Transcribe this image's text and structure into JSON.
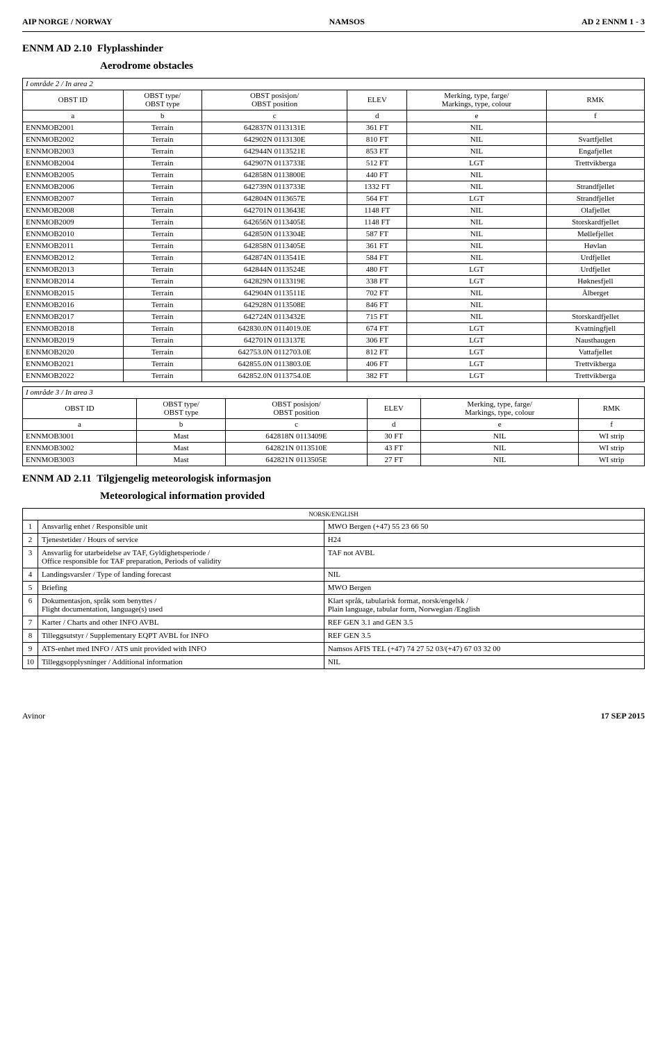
{
  "header": {
    "left": "AIP NORGE / NORWAY",
    "center": "NAMSOS",
    "right": "AD 2 ENNM 1 - 3"
  },
  "section1": {
    "code": "ENNM AD 2.10",
    "title_en": "Flyplasshinder",
    "subtitle": "Aerodrome obstacles"
  },
  "area2": {
    "caption": "I område 2 / In area 2",
    "headers": {
      "c1a": "OBST ID",
      "c2a": "OBST type/",
      "c2b": "OBST type",
      "c3a": "OBST posisjon/",
      "c3b": "OBST position",
      "c4a": "ELEV",
      "c5a": "Merking, type, farge/",
      "c5b": "Markings, type, colour",
      "c6a": "RMK",
      "s1": "a",
      "s2": "b",
      "s3": "c",
      "s4": "d",
      "s5": "e",
      "s6": "f"
    },
    "rows": [
      [
        "ENNMOB2001",
        "Terrain",
        "642837N 0113131E",
        "361 FT",
        "NIL",
        ""
      ],
      [
        "ENNMOB2002",
        "Terrain",
        "642902N 0113130E",
        "810 FT",
        "NIL",
        "Svartfjellet"
      ],
      [
        "ENNMOB2003",
        "Terrain",
        "642944N 0113521E",
        "853 FT",
        "NIL",
        "Engafjellet"
      ],
      [
        "ENNMOB2004",
        "Terrain",
        "642907N 0113733E",
        "512 FT",
        "LGT",
        "Trettvikberga"
      ],
      [
        "ENNMOB2005",
        "Terrain",
        "642858N 0113800E",
        "440 FT",
        "NIL",
        ""
      ],
      [
        "ENNMOB2006",
        "Terrain",
        "642739N 0113733E",
        "1332 FT",
        "NIL",
        "Strandfjellet"
      ],
      [
        "ENNMOB2007",
        "Terrain",
        "642804N 0113657E",
        "564 FT",
        "LGT",
        "Strandfjellet"
      ],
      [
        "ENNMOB2008",
        "Terrain",
        "642701N 0113643E",
        "1148 FT",
        "NIL",
        "Olafjellet"
      ],
      [
        "ENNMOB2009",
        "Terrain",
        "642656N 0113405E",
        "1148 FT",
        "NIL",
        "Storskardfjellet"
      ],
      [
        "ENNMOB2010",
        "Terrain",
        "642850N 0113304E",
        "587 FT",
        "NIL",
        "Møllefjellet"
      ],
      [
        "ENNMOB2011",
        "Terrain",
        "642858N 0113405E",
        "361 FT",
        "NIL",
        "Høvlan"
      ],
      [
        "ENNMOB2012",
        "Terrain",
        "642874N 0113541E",
        "584 FT",
        "NIL",
        "Urdfjellet"
      ],
      [
        "ENNMOB2013",
        "Terrain",
        "642844N 0113524E",
        "480 FT",
        "LGT",
        "Urdfjellet"
      ],
      [
        "ENNMOB2014",
        "Terrain",
        "642829N 0113319E",
        "338 FT",
        "LGT",
        "Høknesfjell"
      ],
      [
        "ENNMOB2015",
        "Terrain",
        "642904N 0113511E",
        "702 FT",
        "NIL",
        "Ålberget"
      ],
      [
        "ENNMOB2016",
        "Terrain",
        "642928N 0113508E",
        "846 FT",
        "NIL",
        ""
      ],
      [
        "ENNMOB2017",
        "Terrain",
        "642724N 0113432E",
        "715 FT",
        "NIL",
        "Storskardfjellet"
      ],
      [
        "ENNMOB2018",
        "Terrain",
        "642830.0N 0114019.0E",
        "674 FT",
        "LGT",
        "Kvatningfjell"
      ],
      [
        "ENNMOB2019",
        "Terrain",
        "642701N 0113137E",
        "306 FT",
        "LGT",
        "Nausthaugen"
      ],
      [
        "ENNMOB2020",
        "Terrain",
        "642753.0N 0112703.0E",
        "812 FT",
        "LGT",
        "Vattafjellet"
      ],
      [
        "ENNMOB2021",
        "Terrain",
        "642855.0N 0113803.0E",
        "406 FT",
        "LGT",
        "Trettvikberga"
      ],
      [
        "ENNMOB2022",
        "Terrain",
        "642852.0N 0113754.0E",
        "382 FT",
        "LGT",
        "Trettvikberga"
      ]
    ]
  },
  "area3": {
    "caption": "I område 3 / In area 3",
    "rows": [
      [
        "ENNMOB3001",
        "Mast",
        "642818N 0113409E",
        "30 FT",
        "NIL",
        "WI strip"
      ],
      [
        "ENNMOB3002",
        "Mast",
        "642821N 0113510E",
        "43 FT",
        "NIL",
        "WI strip"
      ],
      [
        "ENNMOB3003",
        "Mast",
        "642821N 0113505E",
        "27 FT",
        "NIL",
        "WI strip"
      ]
    ]
  },
  "section2": {
    "code": "ENNM AD 2.11",
    "title_no": "Tilgjengelig meteorologisk informasjon",
    "title_en": "Meteorological information provided",
    "caption": "NORSK/ENGLISH",
    "rows": [
      [
        "1",
        "Ansvarlig enhet / Responsible unit",
        "MWO Bergen (+47) 55 23 66 50"
      ],
      [
        "2",
        "Tjenestetider / Hours of service",
        "H24"
      ],
      [
        "3",
        "Ansvarlig for utarbeidelse av TAF, Gyldighetsperiode /\nOffice responsible for TAF preparation, Periods of validity",
        "TAF not AVBL"
      ],
      [
        "4",
        "Landingsvarsler / Type of landing forecast",
        "NIL"
      ],
      [
        "5",
        "Briefing",
        "MWO Bergen"
      ],
      [
        "6",
        "Dokumentasjon, språk som benyttes /\nFlight documentation, language(s) used",
        "Klart språk, tabularisk format, norsk/engelsk /\nPlain language, tabular form, Norwegian /English"
      ],
      [
        "7",
        "Karter / Charts and other INFO AVBL",
        "REF GEN 3.1 and GEN 3.5"
      ],
      [
        "8",
        "Tilleggsutstyr / Supplementary EQPT AVBL for INFO",
        "REF GEN 3.5"
      ],
      [
        "9",
        "ATS-enhet med INFO / ATS unit provided with INFO",
        "Namsos AFIS TEL (+47) 74 27 52 03/(+47) 67 03 32 00"
      ],
      [
        "10",
        "Tilleggsopplysninger / Additional information",
        "NIL"
      ]
    ]
  },
  "footer": {
    "left": "Avinor",
    "right": "17 SEP 2015"
  }
}
